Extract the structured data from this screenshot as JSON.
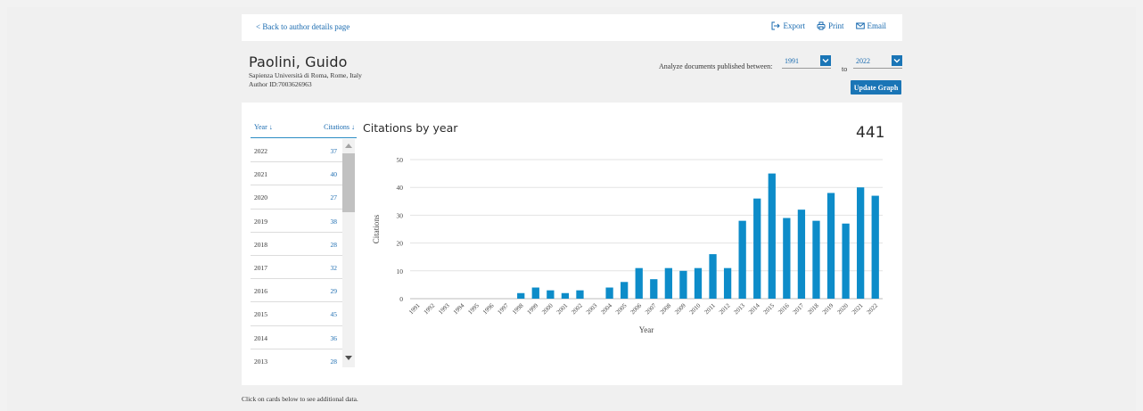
{
  "nav": {
    "back_label": "< Back to author details page"
  },
  "actions": {
    "export_label": "Export",
    "print_label": "Print",
    "email_label": "Email"
  },
  "author": {
    "name": "Paolini, Guido",
    "affiliation": "Sapienza Università di Roma, Rome, Italy",
    "author_id": "Author ID:7003626963"
  },
  "range": {
    "label": "Analyze documents published between:",
    "from": "1991",
    "to_label": "to",
    "to": "2022",
    "update_label": "Update Graph"
  },
  "table": {
    "year_header": "Year ↓",
    "citations_header": "Citations ↓",
    "rows": [
      {
        "year": "2022",
        "citations": "37"
      },
      {
        "year": "2021",
        "citations": "40"
      },
      {
        "year": "2020",
        "citations": "27"
      },
      {
        "year": "2019",
        "citations": "38"
      },
      {
        "year": "2018",
        "citations": "28"
      },
      {
        "year": "2017",
        "citations": "32"
      },
      {
        "year": "2016",
        "citations": "29"
      },
      {
        "year": "2015",
        "citations": "45"
      },
      {
        "year": "2014",
        "citations": "36"
      },
      {
        "year": "2013",
        "citations": "28"
      }
    ]
  },
  "chart_title": "Citations by year",
  "total_citations": "441",
  "footer_note": "Click on cards below to see additional data.",
  "colors": {
    "bar": "#0d8cc9",
    "accent": "#1a75b6",
    "link": "#1a6bb0"
  },
  "chart_data": {
    "type": "bar",
    "title": "Citations by year",
    "xlabel": "Year",
    "ylabel": "Citations",
    "ylim": [
      0,
      50
    ],
    "yticks": [
      0,
      10,
      20,
      30,
      40,
      50
    ],
    "grid": true,
    "categories": [
      "1991",
      "1992",
      "1993",
      "1994",
      "1995",
      "1996",
      "1997",
      "1998",
      "1999",
      "2000",
      "2001",
      "2002",
      "2003",
      "2004",
      "2005",
      "2006",
      "2007",
      "2008",
      "2009",
      "2010",
      "2011",
      "2012",
      "2013",
      "2014",
      "2015",
      "2016",
      "2017",
      "2018",
      "2019",
      "2020",
      "2021",
      "2022"
    ],
    "values": [
      0,
      0,
      0,
      0,
      0,
      0,
      0,
      2,
      4,
      3,
      2,
      3,
      0,
      4,
      6,
      11,
      7,
      11,
      10,
      11,
      16,
      11,
      28,
      36,
      45,
      29,
      32,
      28,
      38,
      27,
      40,
      37
    ]
  }
}
